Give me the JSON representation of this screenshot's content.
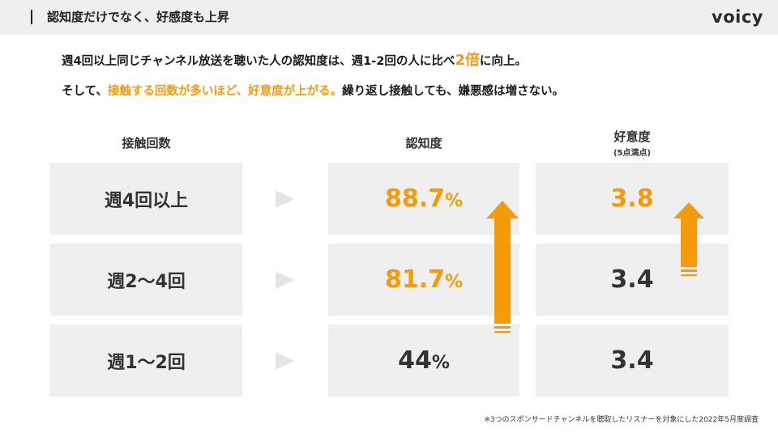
{
  "header": {
    "title": "認知度だけでなく、好感度も上昇",
    "logo": "voicy"
  },
  "lead": {
    "line1_a": "週4回以上同じチャンネル放送を聴いた人の認知度は、週1-2回の人に比べ",
    "line1_highlight": "2倍",
    "line1_b": "に向上。",
    "line2_a": "そして、",
    "line2_highlight": "接触する回数が多いほど、好意度が上がる。",
    "line2_b": "繰り返し接触しても、嫌悪感は増さない。"
  },
  "columns": {
    "contact": "接触回数",
    "awareness": "認知度",
    "favorability": "好意度",
    "favorability_sub": "(5点満点)"
  },
  "rows": [
    {
      "label": "週4回以上",
      "awareness": "88.7",
      "awareness_unit": "%",
      "favorability": "3.8"
    },
    {
      "label": "週2〜4回",
      "awareness": "81.7",
      "awareness_unit": "%",
      "favorability": "3.4"
    },
    {
      "label": "週1〜2回",
      "awareness": "44",
      "awareness_unit": "%",
      "favorability": "3.4"
    }
  ],
  "colors": {
    "accent": "#f59a0a",
    "text": "#333333",
    "cell": "#efefef"
  },
  "footnote": "※3つのスポンサードチャンネルを聴取したリスナーを対象にした2022年5月度調査"
}
